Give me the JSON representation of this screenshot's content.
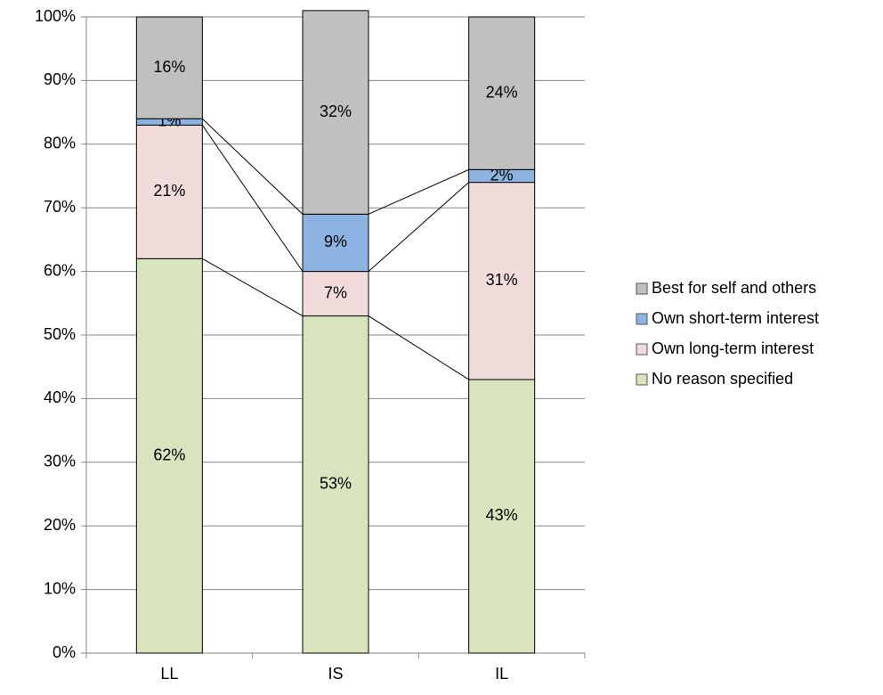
{
  "chart_data": {
    "type": "stacked_bar_percent",
    "categories": [
      "LL",
      "IS",
      "IL"
    ],
    "series": [
      {
        "name": "No reason specified",
        "color": "#d7e4bd",
        "values": [
          62,
          53,
          43
        ],
        "value_labels": [
          "62%",
          "53%",
          "43%"
        ]
      },
      {
        "name": "Own long-term interest",
        "color": "#f2dcdb",
        "values": [
          21,
          7,
          31
        ],
        "value_labels": [
          "21%",
          "7%",
          "31%"
        ]
      },
      {
        "name": "Own short-term interest",
        "color": "#8db3e2",
        "values": [
          1,
          9,
          2
        ],
        "value_labels": [
          "1%",
          "9%",
          "2%"
        ]
      },
      {
        "name": "Best for self and others",
        "color": "#c0c0c0",
        "values": [
          16,
          32,
          24
        ],
        "value_labels": [
          "16%",
          "32%",
          "24%"
        ]
      }
    ],
    "ylim": [
      0,
      100
    ],
    "yticks": [
      {
        "value": 0,
        "label": "0%"
      },
      {
        "value": 10,
        "label": "10%"
      },
      {
        "value": 20,
        "label": "20%"
      },
      {
        "value": 30,
        "label": "30%"
      },
      {
        "value": 40,
        "label": "40%"
      },
      {
        "value": 50,
        "label": "50%"
      },
      {
        "value": 60,
        "label": "60%"
      },
      {
        "value": 70,
        "label": "70%"
      },
      {
        "value": 80,
        "label": "80%"
      },
      {
        "value": 90,
        "label": "90%"
      },
      {
        "value": 100,
        "label": "100%"
      }
    ],
    "grid": true,
    "series_lines": true,
    "legend": "right"
  }
}
